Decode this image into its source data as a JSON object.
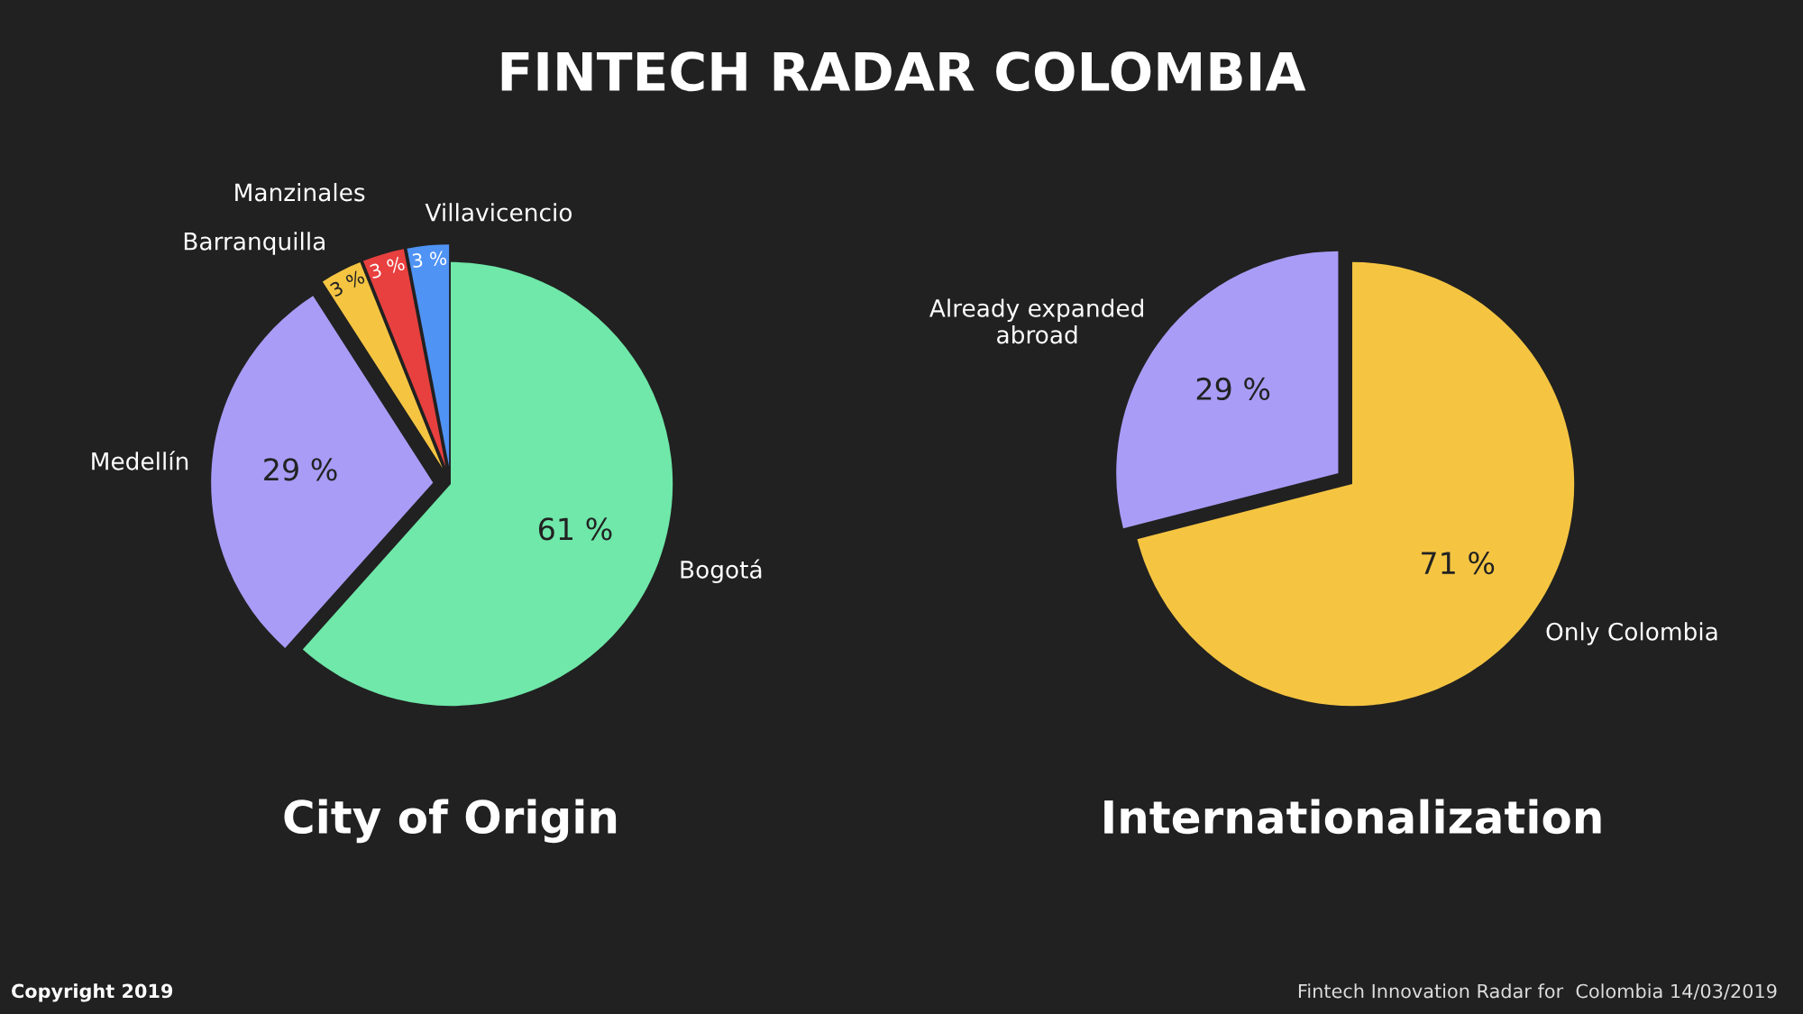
{
  "chart_data": [
    {
      "type": "pie",
      "title": "City of Origin",
      "categories": [
        "Bogotá",
        "Medellín",
        "Barranquilla",
        "Manzinales",
        "Villavicencio"
      ],
      "values": [
        61,
        29,
        3,
        3,
        3
      ],
      "colors": [
        "#6fe8a9",
        "#a99cf7",
        "#f5c542",
        "#e8403f",
        "#4f93f5"
      ],
      "value_labels": [
        "61 %",
        "29 %",
        "3 %",
        "3 %",
        "3 %"
      ],
      "legend": false,
      "annotations": [
        "FINTECH RADAR COLOMBIA",
        "Copyright 2019"
      ]
    },
    {
      "type": "pie",
      "title": "Internationalization",
      "categories": [
        "Only Colombia",
        "Already expanded\nabroad"
      ],
      "values": [
        71,
        29
      ],
      "colors": [
        "#f5c542",
        "#a99cf7"
      ],
      "value_labels": [
        "71 %",
        "29 %"
      ],
      "legend": false,
      "annotations": [
        "Fintech Innovation Radar for  Colombia 14/03/2019"
      ]
    }
  ]
}
